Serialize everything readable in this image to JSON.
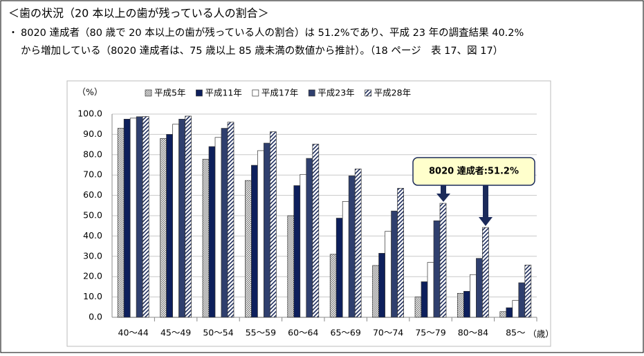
{
  "header": {
    "title": "＜歯の状況（20 本以上の歯が残っている人の割合＞",
    "bullet": "・",
    "lines": [
      "8020 達成者（80 歳で 20 本以上の歯が残っている人の割合）は 51.2%であり、平成 23 年の調査結果 40.2%",
      "から増加している（8020 達成者は、75 歳以上 85 歳未満の数値から推計）。（18 ページ　表 17、図 17）"
    ]
  },
  "chart_data": {
    "type": "bar",
    "y_label": "（%）",
    "x_label": "（歳）",
    "annotation": "8020 達成者:51.2%",
    "categories": [
      "40〜44",
      "45〜49",
      "50〜54",
      "55〜59",
      "60〜64",
      "65〜69",
      "70〜74",
      "75〜79",
      "80〜84",
      "85〜"
    ],
    "series": [
      {
        "name": "平成5年",
        "color": "#9a9a9a",
        "pattern": "dots",
        "values": [
          93.0,
          88.0,
          77.8,
          67.3,
          50.0,
          31.0,
          25.5,
          10.0,
          11.8,
          2.8
        ]
      },
      {
        "name": "平成11年",
        "color": "#0d1f5c",
        "pattern": "solid",
        "values": [
          97.5,
          90.0,
          84.0,
          74.8,
          64.8,
          48.8,
          31.5,
          17.5,
          12.8,
          4.7
        ]
      },
      {
        "name": "平成17年",
        "color": "#ffffff",
        "pattern": "solid",
        "values": [
          98.0,
          95.0,
          88.5,
          82.0,
          70.3,
          57.0,
          42.3,
          27.0,
          21.0,
          8.3
        ]
      },
      {
        "name": "平成23年",
        "color": "#2f3f6e",
        "pattern": "solid",
        "values": [
          98.7,
          97.5,
          93.0,
          85.7,
          78.2,
          69.6,
          52.3,
          47.5,
          29.0,
          17.0
        ]
      },
      {
        "name": "平成28年",
        "color": "#1b2a5a",
        "pattern": "hatch",
        "values": [
          98.8,
          99.0,
          96.0,
          91.3,
          85.2,
          73.0,
          63.5,
          56.1,
          44.2,
          25.7
        ]
      }
    ],
    "ylim": [
      0,
      100
    ],
    "yticks": [
      {
        "value": 0,
        "label": "0.0"
      },
      {
        "value": 10,
        "label": "10.0"
      },
      {
        "value": 20,
        "label": "20.0"
      },
      {
        "value": 30,
        "label": "30.0"
      },
      {
        "value": 40,
        "label": "40.0"
      },
      {
        "value": 50,
        "label": "50.0"
      },
      {
        "value": 60,
        "label": "60.0"
      },
      {
        "value": 70,
        "label": "70.0"
      },
      {
        "value": 80,
        "label": "80.0"
      },
      {
        "value": 90,
        "label": "90.0"
      },
      {
        "value": 100,
        "label": "100.0"
      }
    ],
    "grid": true
  }
}
